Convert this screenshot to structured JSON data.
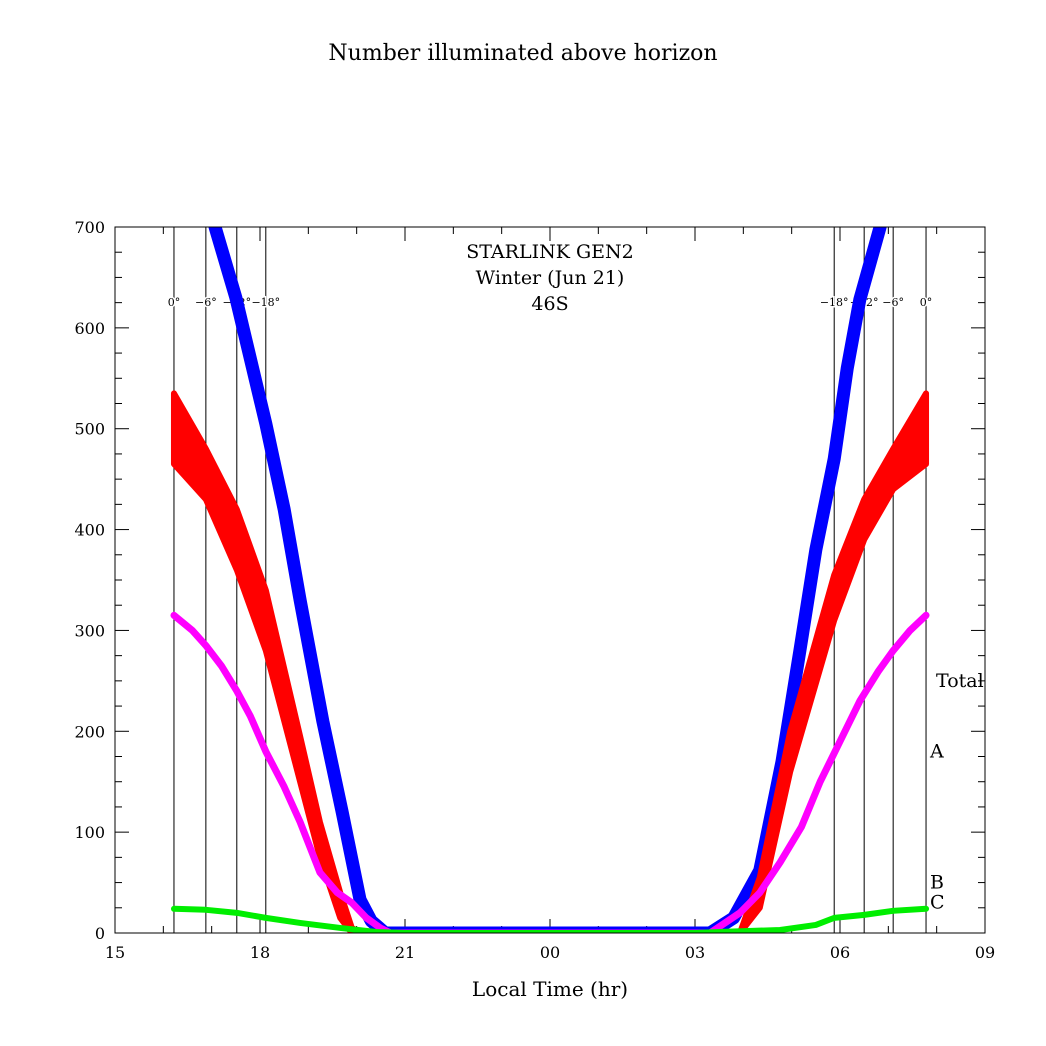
{
  "chart_data": {
    "type": "line",
    "title": "Number illuminated above horizon",
    "annotation_lines": [
      "STARLINK GEN2",
      "Winter (Jun 21)",
      "46S"
    ],
    "xlabel": "Local Time (hr)",
    "ylabel": "",
    "xlim": [
      15,
      33
    ],
    "ylim": [
      0,
      700
    ],
    "x_tick_values": [
      15,
      18,
      21,
      24,
      27,
      30,
      33
    ],
    "x_tick_labels": [
      "15",
      "18",
      "21",
      "00",
      "03",
      "06",
      "09"
    ],
    "y_tick_values": [
      0,
      100,
      200,
      300,
      400,
      500,
      600,
      700
    ],
    "y_tick_labels": [
      "0",
      "100",
      "200",
      "300",
      "400",
      "500",
      "600",
      "700"
    ],
    "twilight_lines": [
      {
        "x": 16.22,
        "label": "0°"
      },
      {
        "x": 16.88,
        "label": "−6°"
      },
      {
        "x": 17.52,
        "label": "−12°"
      },
      {
        "x": 18.12,
        "label": "−18°"
      },
      {
        "x": 29.88,
        "label": "−18°"
      },
      {
        "x": 30.5,
        "label": "−12°"
      },
      {
        "x": 31.1,
        "label": "−6°"
      },
      {
        "x": 31.78,
        "label": "0°"
      }
    ],
    "series": [
      {
        "name": "Total",
        "color": "#0000ff",
        "label_y": 250,
        "x": [
          17.07,
          17.5,
          18.12,
          18.5,
          18.83,
          19.3,
          19.7,
          20.07,
          20.3,
          20.59,
          21,
          27,
          27.31,
          27.8,
          28.34,
          28.8,
          29.17,
          29.5,
          29.88,
          30.15,
          30.41,
          30.83
        ],
        "y": [
          700,
          630,
          505,
          420,
          330,
          210,
          120,
          33,
          12,
          0,
          0,
          0,
          0,
          15,
          62,
          170,
          280,
          380,
          470,
          560,
          628,
          700
        ]
      },
      {
        "name": "A",
        "color": "#ff0000",
        "label_y": 180,
        "x": [
          16.22,
          16.88,
          17.52,
          18.12,
          18.83,
          19.24,
          19.66,
          19.9,
          20.1,
          21,
          27,
          27.93,
          28.34,
          28.97,
          29.88,
          30.5,
          31.1,
          31.78
        ],
        "upper": [
          535,
          480,
          420,
          340,
          195,
          110,
          40,
          5,
          0,
          0,
          0,
          0,
          55,
          200,
          355,
          430,
          480,
          535
        ],
        "lower": [
          465,
          430,
          360,
          280,
          150,
          75,
          15,
          0,
          0,
          0,
          0,
          0,
          25,
          160,
          310,
          390,
          440,
          465
        ]
      },
      {
        "name": "B",
        "color": "#ff00ff",
        "label_y": 50,
        "x": [
          16.22,
          16.6,
          16.88,
          17.2,
          17.52,
          17.8,
          18.12,
          18.5,
          18.83,
          19.24,
          19.6,
          19.9,
          20.2,
          20.49,
          20.7,
          21,
          27,
          27.31,
          27.93,
          28.34,
          28.76,
          29.2,
          29.59,
          30.0,
          30.41,
          30.8,
          31.1,
          31.45,
          31.78
        ],
        "y": [
          315,
          300,
          285,
          265,
          240,
          215,
          180,
          145,
          110,
          60,
          40,
          30,
          15,
          5,
          0,
          0,
          0,
          0,
          20,
          40,
          70,
          105,
          150,
          190,
          230,
          260,
          280,
          300,
          315
        ]
      },
      {
        "name": "C",
        "color": "#00ee00",
        "label_y": 30,
        "x": [
          16.22,
          16.88,
          17.52,
          18.12,
          18.83,
          19.66,
          20.4,
          21,
          27,
          27.5,
          28.76,
          29.5,
          29.88,
          30.5,
          31.1,
          31.78
        ],
        "y": [
          24,
          23,
          20,
          15,
          10,
          5,
          1,
          0,
          0,
          1,
          3,
          8,
          15,
          18,
          22,
          24
        ]
      }
    ]
  }
}
